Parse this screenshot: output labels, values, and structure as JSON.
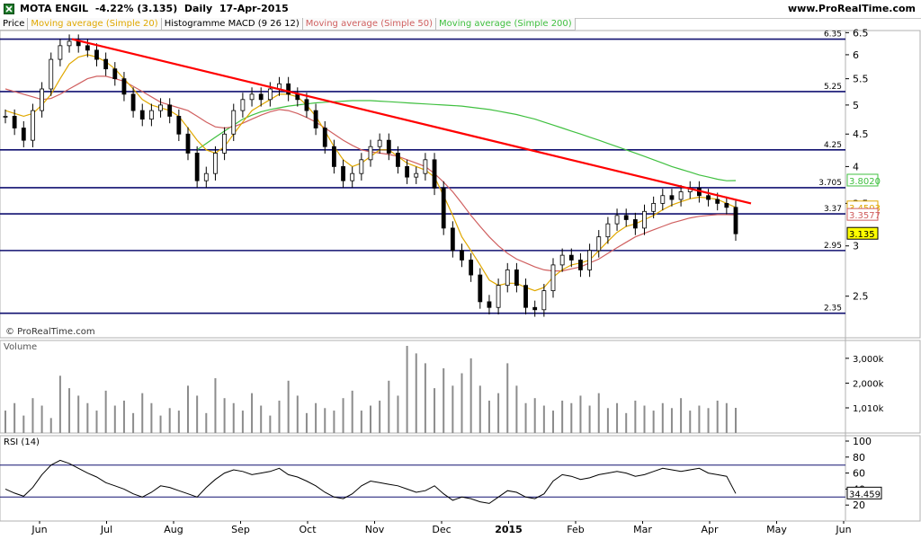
{
  "header": {
    "symbol": "MOTA ENGIL",
    "change": "-4.22%",
    "last": "(3.135)",
    "period": "Daily",
    "date": "17-Apr-2015",
    "site": "www.ProRealTime.com"
  },
  "tabs": [
    {
      "label": "Price",
      "color": "#000000"
    },
    {
      "label": "Moving average (Simple 20)",
      "color": "#e0a800"
    },
    {
      "label": "Histogramme MACD (9 26 12)",
      "color": "#000000"
    },
    {
      "label": "Moving average (Simple 50)",
      "color": "#d06060"
    },
    {
      "label": "Moving average (Simple 200)",
      "color": "#40c040"
    }
  ],
  "watermark": "© ProRealTime.com",
  "chart_data": [
    {
      "type": "candlestick",
      "name": "Price",
      "x": [
        "Jun",
        "Jul",
        "Aug",
        "Sep",
        "Oct",
        "Nov",
        "Dec",
        "2015",
        "Feb",
        "Mar",
        "Apr",
        "May",
        "Jun"
      ],
      "y_ticks": [
        2.5,
        3,
        3.5,
        4,
        4.5,
        5,
        5.5,
        6,
        6.5
      ],
      "ylim": [
        2.15,
        6.55
      ],
      "yscale": "log",
      "horizontal_levels": [
        6.35,
        5.25,
        4.25,
        3.705,
        3.37,
        2.95,
        2.35
      ],
      "last_values": [
        {
          "label": "3.8020",
          "series": "Moving average (Simple 200)",
          "color": "#40c040",
          "value": 3.802
        },
        {
          "label": "3.4503",
          "series": "Moving average (Simple 20)",
          "color": "#e0a800",
          "value": 3.4503
        },
        {
          "label": "3.3577",
          "series": "Moving average (Simple 50)",
          "color": "#d06060",
          "value": 3.3577
        },
        {
          "label": "3.135",
          "series": "Price",
          "color": "#000000",
          "value": 3.135
        }
      ],
      "trendline": {
        "from": {
          "x": "early Jun",
          "y": 6.35
        },
        "to": {
          "x": "mid Apr",
          "y": 3.5
        },
        "color": "#ff0000"
      },
      "close_series": [
        4.8,
        4.6,
        4.4,
        4.9,
        5.3,
        5.9,
        6.2,
        6.3,
        6.2,
        6.1,
        5.9,
        5.7,
        5.5,
        5.2,
        4.9,
        4.75,
        4.9,
        5.0,
        4.8,
        4.5,
        4.2,
        3.8,
        3.9,
        4.2,
        4.5,
        4.9,
        5.1,
        5.2,
        5.1,
        5.3,
        5.4,
        5.2,
        5.1,
        4.9,
        4.6,
        4.3,
        4.0,
        3.8,
        3.9,
        4.1,
        4.3,
        4.4,
        4.2,
        4.0,
        3.85,
        3.9,
        4.1,
        3.7,
        3.2,
        2.95,
        2.85,
        2.7,
        2.45,
        2.4,
        2.6,
        2.75,
        2.6,
        2.4,
        2.38,
        2.55,
        2.8,
        2.9,
        2.85,
        2.75,
        2.95,
        3.1,
        3.25,
        3.35,
        3.3,
        3.2,
        3.4,
        3.5,
        3.6,
        3.55,
        3.65,
        3.7,
        3.6,
        3.55,
        3.5,
        3.45,
        3.135
      ],
      "sma20": [
        4.9,
        4.85,
        4.8,
        4.85,
        5.0,
        5.2,
        5.5,
        5.8,
        5.95,
        6.0,
        5.95,
        5.85,
        5.7,
        5.5,
        5.3,
        5.1,
        5.0,
        4.95,
        4.9,
        4.8,
        4.6,
        4.4,
        4.25,
        4.2,
        4.3,
        4.5,
        4.7,
        4.9,
        5.0,
        5.1,
        5.2,
        5.2,
        5.15,
        5.0,
        4.8,
        4.55,
        4.3,
        4.1,
        4.0,
        4.05,
        4.15,
        4.25,
        4.25,
        4.15,
        4.05,
        4.0,
        3.95,
        3.85,
        3.6,
        3.35,
        3.1,
        2.95,
        2.8,
        2.65,
        2.6,
        2.62,
        2.62,
        2.58,
        2.55,
        2.58,
        2.68,
        2.75,
        2.8,
        2.82,
        2.85,
        2.95,
        3.05,
        3.15,
        3.22,
        3.25,
        3.3,
        3.35,
        3.42,
        3.48,
        3.52,
        3.56,
        3.58,
        3.57,
        3.55,
        3.5,
        3.45
      ],
      "sma50": [
        5.3,
        5.25,
        5.2,
        5.15,
        5.1,
        5.12,
        5.2,
        5.3,
        5.4,
        5.5,
        5.55,
        5.55,
        5.5,
        5.45,
        5.35,
        5.25,
        5.15,
        5.05,
        5.0,
        4.95,
        4.9,
        4.8,
        4.7,
        4.62,
        4.6,
        4.62,
        4.68,
        4.75,
        4.82,
        4.88,
        4.92,
        4.9,
        4.85,
        4.78,
        4.7,
        4.6,
        4.5,
        4.4,
        4.32,
        4.25,
        4.22,
        4.2,
        4.18,
        4.15,
        4.1,
        4.05,
        4.0,
        3.9,
        3.78,
        3.65,
        3.5,
        3.35,
        3.22,
        3.1,
        3.0,
        2.92,
        2.86,
        2.82,
        2.78,
        2.75,
        2.74,
        2.74,
        2.76,
        2.78,
        2.82,
        2.86,
        2.92,
        2.98,
        3.04,
        3.1,
        3.14,
        3.18,
        3.22,
        3.26,
        3.29,
        3.32,
        3.34,
        3.35,
        3.36,
        3.36,
        3.3577
      ],
      "sma200_start_index": 0,
      "sma200": [
        4.25,
        4.35,
        4.45,
        4.55,
        4.65,
        4.75,
        4.82,
        4.88,
        4.92,
        4.95,
        4.98,
        5.0,
        5.02,
        5.04,
        5.05,
        5.06,
        5.07,
        5.08,
        5.08,
        5.08,
        5.07,
        5.06,
        5.05,
        5.04,
        5.03,
        5.02,
        5.01,
        5.0,
        4.99,
        4.98,
        4.96,
        4.94,
        4.92,
        4.89,
        4.86,
        4.83,
        4.79,
        4.75,
        4.7,
        4.65,
        4.6,
        4.55,
        4.5,
        4.45,
        4.4,
        4.35,
        4.3,
        4.25,
        4.2,
        4.15,
        4.1,
        4.05,
        4.0,
        3.96,
        3.92,
        3.88,
        3.85,
        3.82,
        3.8,
        3.802
      ]
    },
    {
      "type": "bar",
      "name": "Volume",
      "y_ticks": [
        "1,010k",
        "2,000k",
        "3,000k"
      ],
      "y_tick_values": [
        1010,
        2000,
        3000
      ],
      "ylim": [
        0,
        3500
      ],
      "last_value_label": "1,010k",
      "values": [
        900,
        1200,
        700,
        1400,
        1100,
        600,
        2300,
        1800,
        1500,
        1200,
        900,
        1700,
        1100,
        1300,
        800,
        1600,
        1200,
        700,
        1000,
        900,
        1900,
        1500,
        800,
        2200,
        1400,
        1200,
        900,
        1600,
        1100,
        700,
        1300,
        2100,
        1500,
        800,
        1200,
        1000,
        900,
        1400,
        1700,
        900,
        1100,
        1300,
        2100,
        1500,
        3500,
        3200,
        2800,
        1800,
        2600,
        1900,
        2400,
        3000,
        1900,
        1300,
        1600,
        2800,
        1900,
        1200,
        1400,
        1100,
        900,
        1300,
        1200,
        1500,
        1100,
        1600,
        1000,
        1200,
        800,
        1300,
        1100,
        900,
        1200,
        1000,
        1400,
        900,
        1100,
        1000,
        1300,
        1200,
        1010
      ]
    },
    {
      "type": "line",
      "name": "RSI (14)",
      "y_ticks": [
        20,
        40,
        60,
        80,
        100
      ],
      "ylim": [
        0,
        100
      ],
      "overbought": 70,
      "oversold": 30,
      "last_value_label": "34.459",
      "values": [
        40,
        35,
        31,
        42,
        58,
        70,
        76,
        72,
        66,
        60,
        55,
        48,
        44,
        40,
        34,
        30,
        36,
        44,
        42,
        38,
        34,
        30,
        42,
        52,
        60,
        64,
        62,
        58,
        60,
        62,
        66,
        58,
        55,
        50,
        44,
        36,
        30,
        28,
        34,
        44,
        50,
        48,
        46,
        44,
        40,
        36,
        38,
        44,
        34,
        26,
        30,
        28,
        24,
        22,
        30,
        38,
        36,
        30,
        28,
        34,
        50,
        58,
        56,
        52,
        54,
        58,
        60,
        62,
        60,
        56,
        58,
        62,
        66,
        64,
        62,
        64,
        66,
        60,
        58,
        56,
        34.459
      ]
    }
  ],
  "x_axis": {
    "labels": [
      "Jun",
      "Jul",
      "Aug",
      "Sep",
      "Oct",
      "Nov",
      "Dec",
      "2015",
      "Feb",
      "Mar",
      "Apr",
      "May",
      "Jun"
    ]
  },
  "panels": {
    "volume_label": "Volume",
    "rsi_label": "RSI (14)"
  }
}
